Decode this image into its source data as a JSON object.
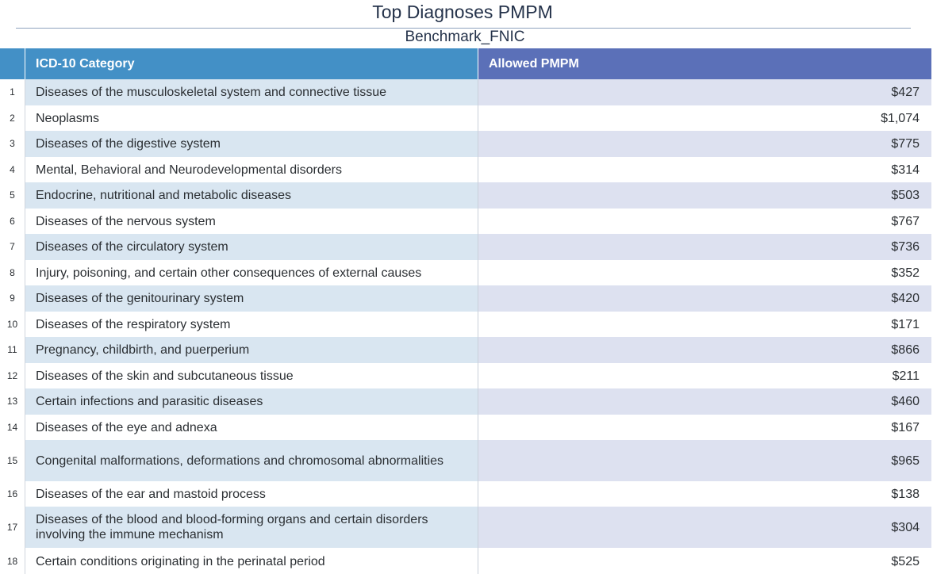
{
  "report": {
    "title": "Top Diagnoses PMPM",
    "subtitle": "Benchmark_FNIC"
  },
  "table": {
    "columns": [
      "ICD-10 Category",
      "Allowed PMPM"
    ],
    "rows": [
      {
        "num": "1",
        "category": "Diseases of the musculoskeletal system and connective tissue",
        "value": "$427"
      },
      {
        "num": "2",
        "category": "Neoplasms",
        "value": "$1,074"
      },
      {
        "num": "3",
        "category": "Diseases of the digestive system",
        "value": "$775"
      },
      {
        "num": "4",
        "category": "Mental, Behavioral and Neurodevelopmental disorders",
        "value": "$314"
      },
      {
        "num": "5",
        "category": "Endocrine, nutritional and metabolic diseases",
        "value": "$503"
      },
      {
        "num": "6",
        "category": "Diseases of the nervous system",
        "value": "$767"
      },
      {
        "num": "7",
        "category": "Diseases of the circulatory system",
        "value": "$736"
      },
      {
        "num": "8",
        "category": "Injury, poisoning, and certain other consequences of external causes",
        "value": "$352"
      },
      {
        "num": "9",
        "category": "Diseases of the genitourinary system",
        "value": "$420"
      },
      {
        "num": "10",
        "category": "Diseases of the respiratory system",
        "value": "$171"
      },
      {
        "num": "11",
        "category": "Pregnancy, childbirth, and puerperium",
        "value": "$866"
      },
      {
        "num": "12",
        "category": "Diseases of the skin and subcutaneous tissue",
        "value": "$211"
      },
      {
        "num": "13",
        "category": "Certain infections and parasitic diseases",
        "value": "$460"
      },
      {
        "num": "14",
        "category": "Diseases of the eye and adnexa",
        "value": "$167"
      },
      {
        "num": "15",
        "category": "Congenital malformations, deformations and chromosomal abnormalities",
        "value": "$965"
      },
      {
        "num": "16",
        "category": "Diseases of the ear and mastoid process",
        "value": "$138"
      },
      {
        "num": "17",
        "category": "Diseases of the blood and blood-forming organs and certain disorders involving the immune mechanism",
        "value": "$304"
      },
      {
        "num": "18",
        "category": "Certain conditions originating in the perinatal period",
        "value": "$525"
      }
    ]
  }
}
